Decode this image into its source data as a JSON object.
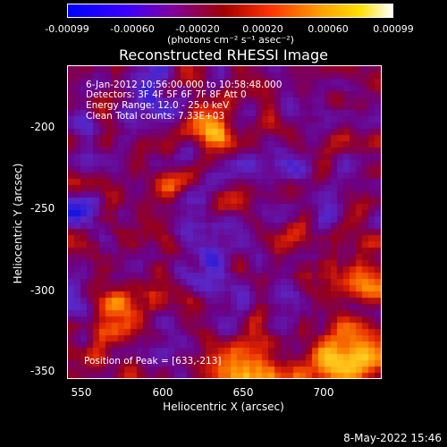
{
  "colorbar": {
    "ticks": [
      "-0.00099",
      "-0.00060",
      "-0.00020",
      "0.00020",
      "0.00060",
      "0.00099"
    ],
    "units": "(photons cm⁻² s⁻¹ asec⁻²)"
  },
  "plot": {
    "title": "Reconstructed RHESSI Image",
    "info_lines": [
      "6-Jan-2012 10:56:00.000 to 10:58:48.000",
      "Detectors: 3F 4F 5F 6F 7F 8F  Att 0",
      "Energy Range: 12.0 - 25.0 keV",
      "Clean     Total counts: 7.33E+03"
    ],
    "peak_label": "Position of Peak = [633,-213]",
    "x_ticks": [
      "550",
      "600",
      "650",
      "700"
    ],
    "y_ticks": [
      "-200",
      "-250",
      "-300",
      "-350"
    ],
    "x_label": "Heliocentric X (arcsec)",
    "y_label": "Heliocentric Y (arcsec)"
  },
  "datestamp": "8-May-2022 15:46",
  "colors": {
    "scale": [
      "#0000ff",
      "#6000b0",
      "#8a0060",
      "#c01010",
      "#ff4000",
      "#ff9a00",
      "#ffe000",
      "#ffffff"
    ]
  }
}
